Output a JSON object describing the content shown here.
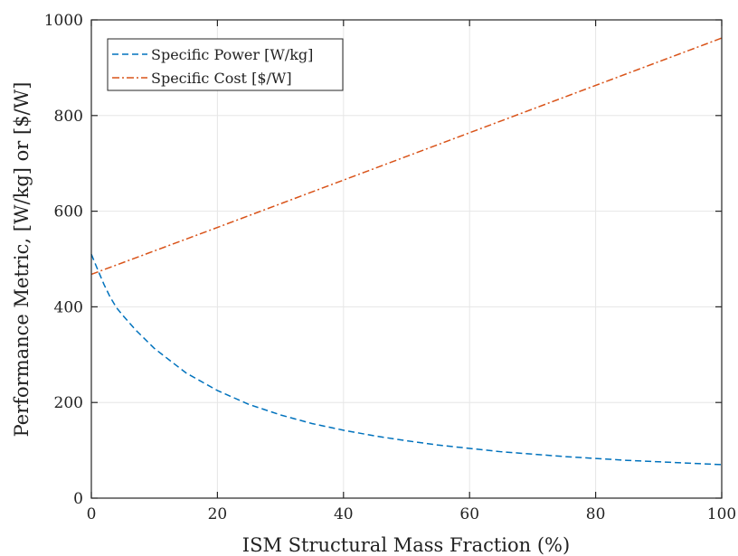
{
  "chart_data": {
    "type": "line",
    "xlabel": "ISM Structural Mass Fraction (%)",
    "ylabel": "Performance Metric, [W/kg] or [$/W]",
    "xlim": [
      0,
      100
    ],
    "ylim": [
      0,
      1000
    ],
    "xticks": [
      0,
      20,
      40,
      60,
      80,
      100
    ],
    "yticks": [
      0,
      200,
      400,
      600,
      800,
      1000
    ],
    "grid": true,
    "legend_position": "top-left",
    "series": [
      {
        "name": "Specific Power [W/kg]",
        "color": "#0072BD",
        "style": "dashed",
        "x": [
          0,
          1,
          2,
          3,
          4,
          5,
          7,
          10,
          15,
          20,
          25,
          30,
          35,
          40,
          45,
          50,
          55,
          60,
          65,
          70,
          75,
          80,
          85,
          90,
          95,
          100
        ],
        "y": [
          510,
          478,
          447,
          420,
          398,
          382,
          352,
          313,
          262,
          225,
          196,
          174,
          156,
          142,
          130,
          120,
          111,
          104,
          97,
          92,
          87,
          83,
          79,
          76,
          73,
          70
        ]
      },
      {
        "name": "Specific Cost [$/W]",
        "color": "#D95319",
        "style": "dashdot",
        "x": [
          0,
          20,
          40,
          60,
          80,
          100
        ],
        "y": [
          468,
          566,
          665,
          764,
          863,
          962
        ]
      }
    ]
  }
}
